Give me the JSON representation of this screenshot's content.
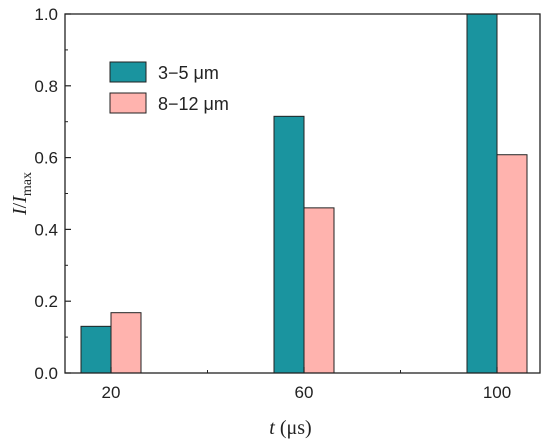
{
  "chart_data": {
    "type": "bar",
    "categories": [
      "20",
      "60",
      "100"
    ],
    "series": [
      {
        "name": "3−5 μm",
        "values": [
          0.13,
          0.715,
          1.0
        ],
        "color": "#1a949f"
      },
      {
        "name": "8−12 μm",
        "values": [
          0.168,
          0.46,
          0.608
        ],
        "color": "#ffb3ae"
      }
    ],
    "xlabel": {
      "var": "t",
      "unit": " (μs)"
    },
    "ylabel": {
      "var": "I",
      "sep": "/",
      "var2": "I",
      "sub": "max"
    },
    "ylim": [
      0,
      1.0
    ],
    "yticks": [
      "0.0",
      "0.2",
      "0.4",
      "0.6",
      "0.8",
      "1.0"
    ],
    "grid": false,
    "legend_position": "top-left"
  }
}
